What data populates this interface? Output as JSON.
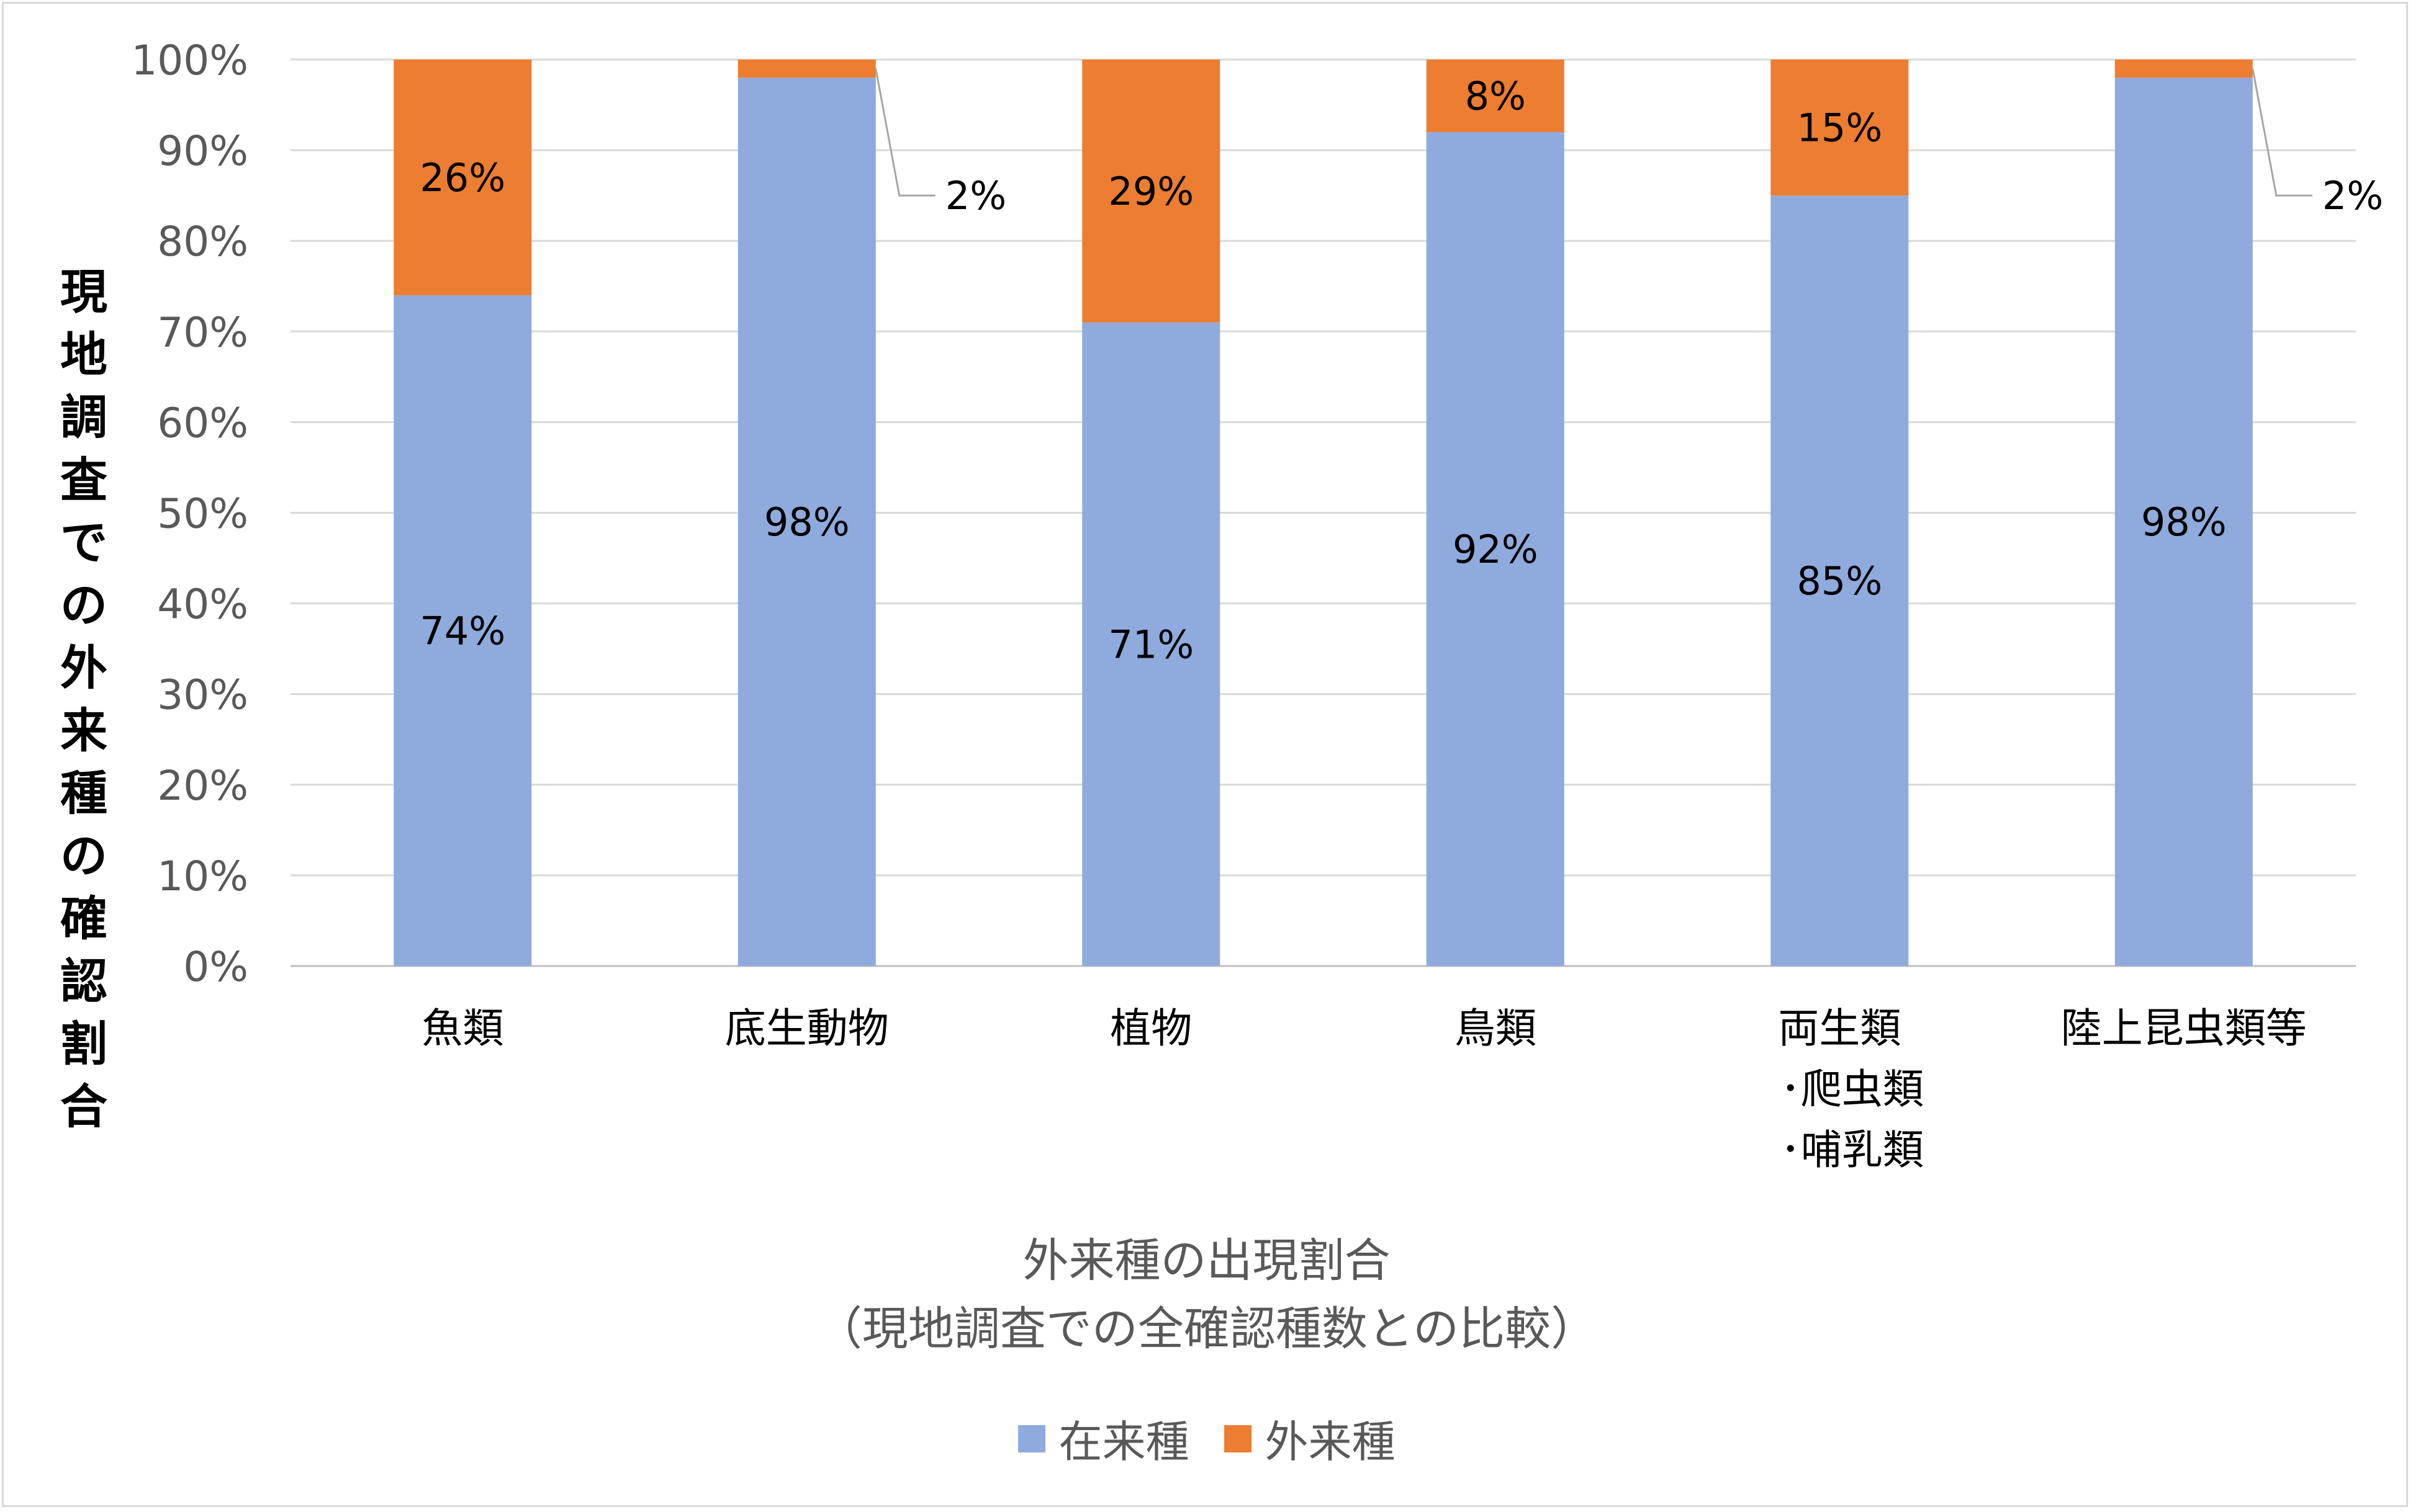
{
  "chart_data": {
    "type": "bar",
    "stacked": true,
    "normalized": true,
    "categories": [
      [
        "魚類"
      ],
      [
        "底生動物"
      ],
      [
        "植物"
      ],
      [
        "鳥類"
      ],
      [
        "両生類",
        "･爬虫類",
        "･哺乳類"
      ],
      [
        "陸上昆虫類等"
      ]
    ],
    "series": [
      {
        "name": "在来種",
        "color": "#8faadc",
        "values": [
          74,
          98,
          71,
          92,
          85,
          98
        ],
        "labels": [
          "74%",
          "98%",
          "71%",
          "92%",
          "85%",
          "98%"
        ]
      },
      {
        "name": "外来種",
        "color": "#ed7d31",
        "values": [
          26,
          2,
          29,
          8,
          15,
          2
        ],
        "labels": [
          "26%",
          "2%",
          "29%",
          "8%",
          "15%",
          "2%"
        ],
        "callout": [
          false,
          true,
          false,
          false,
          false,
          true
        ]
      }
    ],
    "y_ticks": [
      "0%",
      "10%",
      "20%",
      "30%",
      "40%",
      "50%",
      "60%",
      "70%",
      "80%",
      "90%",
      "100%"
    ],
    "ylim": [
      0,
      100
    ],
    "ylabel": "現地調査での外来種の確認割合",
    "xlabel_line1": "外来種の出現割合",
    "xlabel_line2": "（現地調査での全確認種数との比較）",
    "grid": true,
    "legend_position": "bottom"
  }
}
